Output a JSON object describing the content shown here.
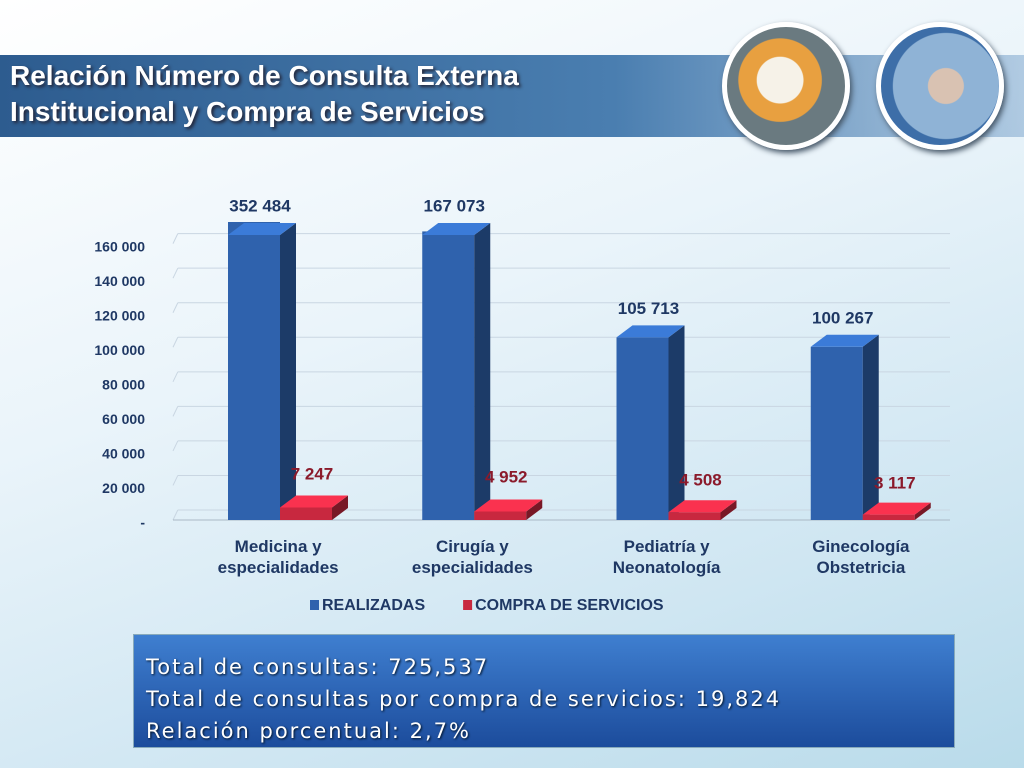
{
  "chart_data": {
    "type": "bar",
    "title": "Relación Número de Consulta Externa Institucional y Compra de Servicios",
    "categories": [
      "Medicina y especialidades",
      "Cirugía y especialidades",
      "Pediatría y Neonatología",
      "Ginecología Obstetricia"
    ],
    "series": [
      {
        "name": "REALIZADAS",
        "color": "#2f62ad",
        "values": [
          352484,
          167073,
          105713,
          100267
        ],
        "value_labels": [
          "352 484",
          "167 073",
          "105 713",
          "100 267"
        ]
      },
      {
        "name": "COMPRA DE SERVICIOS",
        "color": "#c8283f",
        "values": [
          7247,
          4952,
          4508,
          3117
        ],
        "value_labels": [
          "7 247",
          "4 952",
          "4 508",
          "3 117"
        ]
      }
    ],
    "ylim": [
      0,
      165000
    ],
    "yticks": [
      {
        "value": 0,
        "label": "-"
      },
      {
        "value": 20000,
        "label": "20 000"
      },
      {
        "value": 40000,
        "label": "40 000"
      },
      {
        "value": 60000,
        "label": "60 000"
      },
      {
        "value": 80000,
        "label": "80 000"
      },
      {
        "value": 100000,
        "label": "100 000"
      },
      {
        "value": 120000,
        "label": "120 000"
      },
      {
        "value": 140000,
        "label": "140 000"
      },
      {
        "value": 160000,
        "label": "160 000"
      }
    ],
    "grid": true,
    "legend": "bottom"
  },
  "summary": [
    "Total de consultas: 725,537",
    "Total de consultas por compra de servicios: 19,824",
    "Relación porcentual: 2,7%"
  ]
}
